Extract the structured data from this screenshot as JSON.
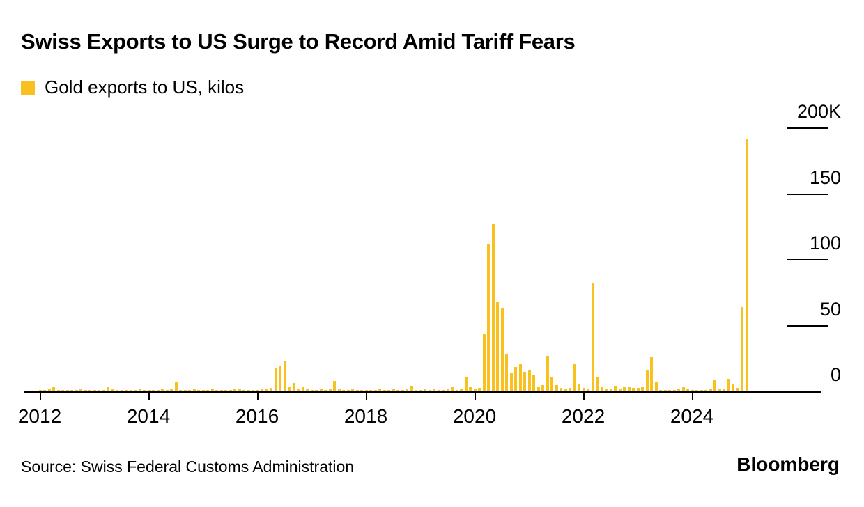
{
  "header": {
    "title": "Swiss Exports to US Surge to Record Amid Tariff Fears",
    "legend_label": "Gold exports to US, kilos"
  },
  "footer": {
    "source": "Source: Swiss Federal Customs Administration",
    "brand": "Bloomberg"
  },
  "chart_data": {
    "type": "bar",
    "title": "Swiss Exports to US Surge to Record Amid Tariff Fears",
    "series_name": "Gold exports to US, kilos",
    "unit": "kilograms, plotted in thousands (K)",
    "frequency": "monthly",
    "start_month": "2012-01",
    "end_month": "2025-01",
    "bar_color": "#F8C120",
    "grid": false,
    "legend_position": "top-left",
    "y_axis_side": "right",
    "ylim_k": [
      0,
      205
    ],
    "y_tick_values_k": [
      0,
      50,
      100,
      150,
      200
    ],
    "y_tick_labels": [
      "0",
      "50",
      "100",
      "150",
      "200K"
    ],
    "x_tick_years": [
      2012,
      2014,
      2016,
      2018,
      2020,
      2022,
      2024
    ],
    "values_k_by_year": {
      "2012": [
        0.8,
        0.6,
        0.9,
        3.0,
        0.7,
        0.6,
        0.8,
        0.5,
        0.7,
        0.9,
        0.6,
        0.8
      ],
      "2013": [
        0.7,
        0.6,
        0.8,
        3.2,
        0.9,
        0.6,
        0.7,
        0.5,
        0.8,
        0.6,
        0.9,
        0.7
      ],
      "2014": [
        0.6,
        0.8,
        0.7,
        0.9,
        0.6,
        1.0,
        6.5,
        0.8,
        0.6,
        0.7,
        0.9,
        0.6
      ],
      "2015": [
        0.7,
        0.6,
        1.8,
        0.7,
        0.8,
        0.6,
        0.7,
        0.9,
        1.4,
        0.6,
        0.8,
        0.7
      ],
      "2016": [
        0.8,
        1.2,
        1.6,
        2.0,
        17.5,
        19.0,
        23.0,
        3.0,
        6.0,
        1.2,
        2.5,
        1.4
      ],
      "2017": [
        0.8,
        0.7,
        0.9,
        0.8,
        1.0,
        7.5,
        1.2,
        0.8,
        0.7,
        0.9,
        0.8,
        0.7
      ],
      "2018": [
        0.7,
        0.8,
        0.6,
        0.9,
        0.7,
        0.8,
        0.9,
        0.7,
        0.8,
        1.0,
        3.5,
        0.8
      ],
      "2019": [
        0.7,
        0.9,
        0.8,
        1.5,
        0.7,
        0.8,
        0.9,
        2.5,
        0.8,
        1.0,
        10.5,
        2.5
      ],
      "2020": [
        1.2,
        2.0,
        43.5,
        112.0,
        127.0,
        68.0,
        63.0,
        28.0,
        13.5,
        18.0,
        20.5,
        14.5
      ],
      "2021": [
        16.0,
        12.0,
        3.0,
        4.5,
        26.5,
        10.0,
        4.0,
        2.0,
        1.5,
        2.0,
        20.5,
        5.5
      ],
      "2022": [
        2.0,
        1.5,
        82.0,
        10.0,
        2.5,
        1.0,
        1.5,
        3.5,
        1.5,
        2.5,
        3.0,
        2.0
      ],
      "2023": [
        2.0,
        2.5,
        16.0,
        26.0,
        6.5,
        0.8,
        0.6,
        0.8,
        0.7,
        1.0,
        3.0,
        1.5
      ],
      "2024": [
        0.5,
        0.8,
        0.6,
        0.8,
        1.5,
        8.0,
        1.0,
        1.2,
        9.0,
        5.5,
        2.0,
        63.5
      ],
      "2025": [
        192.0
      ]
    }
  }
}
